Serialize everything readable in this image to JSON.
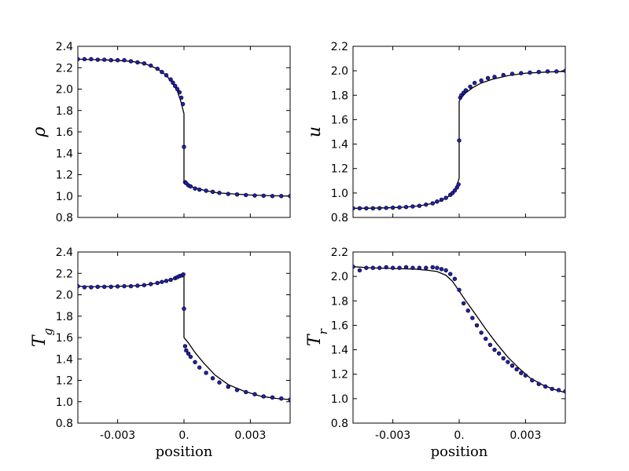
{
  "figure": {
    "x_label": "position"
  },
  "chart_data": [
    {
      "type": "scatter",
      "ylabel": "ρ",
      "xlabel": "",
      "xlim": [
        -0.0048,
        0.0048
      ],
      "ylim": [
        0.8,
        2.4
      ],
      "xticks": [
        -0.003,
        0.0,
        0.003
      ],
      "xtick_labels": [],
      "yticks": [
        0.8,
        1.0,
        1.2,
        1.4,
        1.6,
        1.8,
        2.0,
        2.2,
        2.4
      ],
      "ytick_labels": [
        "0.8",
        "1.0",
        "1.2",
        "1.4",
        "1.6",
        "1.8",
        "2.0",
        "2.2",
        "2.4"
      ],
      "marker_color": "#1f1fb4",
      "line_color": "#000000",
      "points": {
        "x": [
          -0.0048,
          -0.0045,
          -0.0042,
          -0.0039,
          -0.0036,
          -0.0033,
          -0.003,
          -0.0027,
          -0.0024,
          -0.0021,
          -0.0018,
          -0.0015,
          -0.0012,
          -0.001,
          -0.0008,
          -0.0006,
          -0.0005,
          -0.0004,
          -0.0003,
          -0.0002,
          -0.00012,
          -5e-05,
          0.0,
          5e-05,
          0.0001,
          0.0002,
          0.0003,
          0.0005,
          0.0007,
          0.001,
          0.0013,
          0.0016,
          0.002,
          0.0024,
          0.0028,
          0.0032,
          0.0036,
          0.004,
          0.0044,
          0.0048
        ],
        "y": [
          2.28,
          2.28,
          2.28,
          2.275,
          2.275,
          2.27,
          2.27,
          2.27,
          2.26,
          2.25,
          2.24,
          2.22,
          2.19,
          2.16,
          2.13,
          2.09,
          2.06,
          2.03,
          2.0,
          1.97,
          1.92,
          1.86,
          1.46,
          1.13,
          1.12,
          1.1,
          1.09,
          1.07,
          1.06,
          1.05,
          1.04,
          1.03,
          1.02,
          1.015,
          1.01,
          1.005,
          1.003,
          1.0,
          1.0,
          1.0
        ]
      },
      "line": {
        "x": [
          -0.0048,
          -0.004,
          -0.0032,
          -0.0024,
          -0.0018,
          -0.0012,
          -0.0008,
          -0.0005,
          -0.0003,
          -0.00015,
          0.0,
          0.0,
          0.0001,
          0.0003,
          0.0006,
          0.001,
          0.0015,
          0.0022,
          0.003,
          0.004,
          0.0048
        ],
        "y": [
          2.28,
          2.275,
          2.27,
          2.26,
          2.24,
          2.19,
          2.13,
          2.05,
          1.98,
          1.89,
          1.77,
          1.13,
          1.11,
          1.09,
          1.07,
          1.05,
          1.03,
          1.02,
          1.01,
          1.003,
          1.0
        ]
      }
    },
    {
      "type": "scatter",
      "ylabel": "u",
      "xlabel": "",
      "xlim": [
        -0.0048,
        0.0048
      ],
      "ylim": [
        0.8,
        2.2
      ],
      "xticks": [
        -0.003,
        0.0,
        0.003
      ],
      "xtick_labels": [],
      "yticks": [
        0.8,
        1.0,
        1.2,
        1.4,
        1.6,
        1.8,
        2.0,
        2.2
      ],
      "ytick_labels": [
        "0.8",
        "1.0",
        "1.2",
        "1.4",
        "1.6",
        "1.8",
        "2.0",
        "2.2"
      ],
      "marker_color": "#1f1fb4",
      "line_color": "#000000",
      "points": {
        "x": [
          -0.0048,
          -0.0045,
          -0.0042,
          -0.0039,
          -0.0036,
          -0.0033,
          -0.003,
          -0.0027,
          -0.0024,
          -0.0021,
          -0.0018,
          -0.0015,
          -0.0012,
          -0.001,
          -0.0008,
          -0.0006,
          -0.0004,
          -0.0003,
          -0.0002,
          -0.0001,
          -3e-05,
          0.0,
          5e-05,
          0.0001,
          0.0002,
          0.0003,
          0.0005,
          0.0007,
          0.001,
          0.0013,
          0.0016,
          0.002,
          0.0024,
          0.0028,
          0.0032,
          0.0036,
          0.004,
          0.0044,
          0.0048
        ],
        "y": [
          0.875,
          0.875,
          0.875,
          0.875,
          0.876,
          0.878,
          0.88,
          0.882,
          0.885,
          0.89,
          0.895,
          0.905,
          0.915,
          0.93,
          0.945,
          0.96,
          0.985,
          1.0,
          1.02,
          1.045,
          1.07,
          1.43,
          1.78,
          1.8,
          1.82,
          1.84,
          1.87,
          1.9,
          1.92,
          1.94,
          1.95,
          1.965,
          1.975,
          1.98,
          1.985,
          1.99,
          1.995,
          1.995,
          2.0
        ]
      },
      "line": {
        "x": [
          -0.0048,
          -0.004,
          -0.0032,
          -0.0024,
          -0.0018,
          -0.0012,
          -0.0008,
          -0.0005,
          -0.0003,
          -0.00015,
          0.0,
          0.0,
          0.0001,
          0.0003,
          0.0006,
          0.001,
          0.0015,
          0.0022,
          0.003,
          0.004,
          0.0048
        ],
        "y": [
          0.875,
          0.876,
          0.879,
          0.885,
          0.895,
          0.915,
          0.94,
          0.97,
          1.0,
          1.04,
          1.12,
          1.75,
          1.78,
          1.82,
          1.86,
          1.9,
          1.93,
          1.96,
          1.98,
          1.99,
          1.995
        ]
      }
    },
    {
      "type": "scatter",
      "ylabel": "T",
      "ylabel_sub": "g",
      "xlabel": "",
      "xlim": [
        -0.0048,
        0.0048
      ],
      "ylim": [
        0.8,
        2.4
      ],
      "xticks": [
        -0.003,
        0.0,
        0.003
      ],
      "xtick_labels": [
        "-0.003",
        "0.",
        "0.003"
      ],
      "yticks": [
        0.8,
        1.0,
        1.2,
        1.4,
        1.6,
        1.8,
        2.0,
        2.2,
        2.4
      ],
      "ytick_labels": [
        "0.8",
        "1.0",
        "1.2",
        "1.4",
        "1.6",
        "1.8",
        "2.0",
        "2.2",
        "2.4"
      ],
      "marker_color": "#1f1fb4",
      "line_color": "#000000",
      "points": {
        "x": [
          -0.0048,
          -0.0045,
          -0.0042,
          -0.0039,
          -0.0036,
          -0.0033,
          -0.003,
          -0.0027,
          -0.0024,
          -0.0021,
          -0.0018,
          -0.0015,
          -0.0012,
          -0.001,
          -0.0008,
          -0.0006,
          -0.0004,
          -0.0003,
          -0.0002,
          -0.0001,
          -3e-05,
          0.0,
          5e-05,
          0.0001,
          0.0002,
          0.0003,
          0.0005,
          0.0007,
          0.001,
          0.0013,
          0.0016,
          0.002,
          0.0024,
          0.0028,
          0.0032,
          0.0036,
          0.004,
          0.0044,
          0.0048
        ],
        "y": [
          2.08,
          2.07,
          2.07,
          2.075,
          2.075,
          2.075,
          2.078,
          2.08,
          2.08,
          2.085,
          2.09,
          2.1,
          2.11,
          2.12,
          2.13,
          2.14,
          2.155,
          2.165,
          2.175,
          2.18,
          2.19,
          1.87,
          1.52,
          1.48,
          1.45,
          1.42,
          1.37,
          1.32,
          1.27,
          1.22,
          1.18,
          1.14,
          1.11,
          1.09,
          1.07,
          1.05,
          1.04,
          1.03,
          1.02
        ]
      },
      "line": {
        "x": [
          -0.0048,
          -0.004,
          -0.0032,
          -0.0024,
          -0.0018,
          -0.0012,
          -0.0008,
          -0.0004,
          -0.0001,
          0.0,
          0.0,
          0.0002,
          0.0005,
          0.0009,
          0.0014,
          0.002,
          0.0027,
          0.0035,
          0.0042,
          0.0048
        ],
        "y": [
          2.08,
          2.075,
          2.078,
          2.082,
          2.09,
          2.11,
          2.13,
          2.155,
          2.18,
          2.19,
          1.6,
          1.55,
          1.46,
          1.36,
          1.25,
          1.16,
          1.1,
          1.05,
          1.03,
          1.02
        ]
      }
    },
    {
      "type": "scatter",
      "ylabel": "T",
      "ylabel_sub": "r",
      "xlabel": "",
      "xlim": [
        -0.0048,
        0.0048
      ],
      "ylim": [
        0.8,
        2.2
      ],
      "xticks": [
        -0.003,
        0.0,
        0.003
      ],
      "xtick_labels": [
        "-0.003",
        "0.",
        "0.003"
      ],
      "yticks": [
        0.8,
        1.0,
        1.2,
        1.4,
        1.6,
        1.8,
        2.0,
        2.2
      ],
      "ytick_labels": [
        "0.8",
        "1.0",
        "1.2",
        "1.4",
        "1.6",
        "1.8",
        "2.0",
        "2.2"
      ],
      "marker_color": "#1f1fb4",
      "line_color": "#000000",
      "points": {
        "x": [
          -0.0048,
          -0.0045,
          -0.0042,
          -0.0039,
          -0.0036,
          -0.0033,
          -0.003,
          -0.0027,
          -0.0024,
          -0.0021,
          -0.0018,
          -0.0015,
          -0.0012,
          -0.001,
          -0.0008,
          -0.0006,
          -0.0004,
          -0.0002,
          0.0,
          0.0002,
          0.0004,
          0.0006,
          0.0008,
          0.001,
          0.0012,
          0.0014,
          0.0016,
          0.0018,
          0.002,
          0.0022,
          0.0024,
          0.0026,
          0.0028,
          0.003,
          0.0033,
          0.0036,
          0.0039,
          0.0042,
          0.0045,
          0.0048
        ],
        "y": [
          2.08,
          2.05,
          2.07,
          2.07,
          2.07,
          2.075,
          2.07,
          2.07,
          2.075,
          2.07,
          2.07,
          2.07,
          2.075,
          2.07,
          2.06,
          2.05,
          2.02,
          1.98,
          1.89,
          1.78,
          1.72,
          1.66,
          1.6,
          1.54,
          1.49,
          1.44,
          1.4,
          1.37,
          1.33,
          1.3,
          1.27,
          1.24,
          1.21,
          1.19,
          1.15,
          1.12,
          1.1,
          1.08,
          1.07,
          1.06
        ]
      },
      "line": {
        "x": [
          -0.0048,
          -0.004,
          -0.003,
          -0.002,
          -0.0014,
          -0.001,
          -0.0006,
          -0.0003,
          0.0,
          0.0003,
          0.0007,
          0.0012,
          0.0017,
          0.0022,
          0.0027,
          0.0032,
          0.0038,
          0.0044,
          0.0048
        ],
        "y": [
          2.08,
          2.07,
          2.065,
          2.06,
          2.05,
          2.04,
          2.01,
          1.96,
          1.88,
          1.8,
          1.7,
          1.57,
          1.45,
          1.34,
          1.25,
          1.17,
          1.11,
          1.07,
          1.05
        ]
      }
    }
  ]
}
